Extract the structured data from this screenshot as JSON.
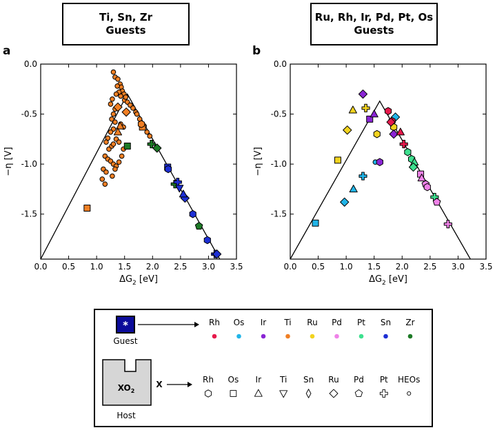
{
  "panels": {
    "a": {
      "letter": "a",
      "title_line1": "Ti, Sn, Zr",
      "title_line2": "Guests"
    },
    "b": {
      "letter": "b",
      "title_line1": "Ru, Rh, Ir, Pd, Pt, Os",
      "title_line2": "Guests"
    }
  },
  "chart_data": [
    {
      "type": "scatter",
      "panel": "a",
      "xlabel_main": "ΔG",
      "xlabel_sub": "2",
      "xlabel_unit": " [eV]",
      "ylabel": "−η [V]",
      "xlim": [
        0.0,
        3.5
      ],
      "ylim": [
        -1.95,
        0.0
      ],
      "xticks": [
        "0.0",
        "0.5",
        "1.0",
        "1.5",
        "2.0",
        "2.5",
        "3.0",
        "3.5"
      ],
      "yticks": [
        "0.0",
        "-0.5",
        "-1.0",
        "-1.5"
      ],
      "volcano_line": [
        [
          0.0,
          -1.95
        ],
        [
          1.55,
          -0.3
        ],
        [
          3.2,
          -1.95
        ]
      ],
      "series": [
        {
          "name": "Ti guests (HEO hosts)",
          "marker": "circle",
          "color": "#f07f24",
          "points": [
            [
              1.3,
              -0.08
            ],
            [
              1.33,
              -0.13
            ],
            [
              1.38,
              -0.15
            ],
            [
              1.42,
              -0.2
            ],
            [
              1.44,
              -0.23
            ],
            [
              1.37,
              -0.22
            ],
            [
              1.46,
              -0.27
            ],
            [
              1.49,
              -0.3
            ],
            [
              1.43,
              -0.32
            ],
            [
              1.5,
              -0.36
            ],
            [
              1.52,
              -0.33
            ],
            [
              1.4,
              -0.28
            ],
            [
              1.35,
              -0.3
            ],
            [
              1.55,
              -0.38
            ],
            [
              1.6,
              -0.41
            ],
            [
              1.28,
              -0.35
            ],
            [
              1.25,
              -0.4
            ],
            [
              1.33,
              -0.45
            ],
            [
              1.65,
              -0.44
            ],
            [
              1.7,
              -0.48
            ],
            [
              1.72,
              -0.5
            ],
            [
              1.77,
              -0.55
            ],
            [
              1.8,
              -0.6
            ],
            [
              1.85,
              -0.62
            ],
            [
              1.9,
              -0.68
            ],
            [
              1.95,
              -0.72
            ],
            [
              1.3,
              -0.5
            ],
            [
              1.27,
              -0.55
            ],
            [
              1.33,
              -0.58
            ],
            [
              1.3,
              -0.65
            ],
            [
              1.25,
              -0.68
            ],
            [
              1.2,
              -0.74
            ],
            [
              1.17,
              -0.78
            ],
            [
              1.22,
              -0.85
            ],
            [
              1.27,
              -0.82
            ],
            [
              1.3,
              -0.8
            ],
            [
              1.35,
              -0.75
            ],
            [
              1.4,
              -0.78
            ],
            [
              1.15,
              -0.92
            ],
            [
              1.2,
              -0.95
            ],
            [
              1.25,
              -0.97
            ],
            [
              1.3,
              -1.0
            ],
            [
              1.35,
              -1.02
            ],
            [
              1.12,
              -1.05
            ],
            [
              1.17,
              -1.08
            ],
            [
              1.1,
              -1.15
            ],
            [
              1.15,
              -1.2
            ],
            [
              1.28,
              -1.12
            ],
            [
              1.33,
              -1.05
            ],
            [
              1.4,
              -0.98
            ],
            [
              1.45,
              -0.92
            ],
            [
              1.48,
              -0.85
            ],
            [
              1.43,
              -0.6
            ],
            [
              1.48,
              -0.63
            ]
          ]
        },
        {
          "name": "Ti/Os host",
          "marker": "square",
          "color": "#f07f24",
          "points": [
            [
              0.83,
              -1.44
            ],
            [
              1.82,
              -0.63
            ]
          ]
        },
        {
          "name": "Ti/Ru host",
          "marker": "diamond",
          "color": "#f07f24",
          "points": [
            [
              1.38,
              -0.43
            ],
            [
              1.53,
              -0.48
            ]
          ]
        },
        {
          "name": "Ti/Ir host",
          "marker": "triangle-up",
          "color": "#f07f24",
          "points": [
            [
              1.42,
              -0.62
            ],
            [
              1.38,
              -0.68
            ]
          ]
        },
        {
          "name": "Ti/Rh host",
          "marker": "hexagon",
          "color": "#f07f24",
          "points": [
            [
              1.8,
              -0.6
            ]
          ]
        },
        {
          "name": "Zr guests",
          "marker": "square",
          "color": "#1d7a26",
          "points": [
            [
              1.55,
              -0.82
            ]
          ]
        },
        {
          "name": "Zr guests",
          "marker": "diamond",
          "color": "#1d7a26",
          "points": [
            [
              2.08,
              -0.84
            ]
          ]
        },
        {
          "name": "Zr guests",
          "marker": "pentagon",
          "color": "#1d7a26",
          "points": [
            [
              2.83,
              -1.62
            ]
          ]
        },
        {
          "name": "Zr guests",
          "marker": "plus",
          "color": "#1d7a26",
          "points": [
            [
              1.98,
              -0.8
            ],
            [
              2.4,
              -1.2
            ]
          ]
        },
        {
          "name": "Sn guests",
          "marker": "square",
          "color": "#1d2fd4",
          "points": [
            [
              2.27,
              -1.03
            ]
          ]
        },
        {
          "name": "Sn guests",
          "marker": "hexagon",
          "color": "#1d2fd4",
          "points": [
            [
              2.28,
              -1.05
            ]
          ]
        },
        {
          "name": "Sn guests",
          "marker": "plus",
          "color": "#1d2fd4",
          "points": [
            [
              2.45,
              -1.18
            ],
            [
              3.12,
              -1.9
            ]
          ]
        },
        {
          "name": "Sn guests",
          "marker": "triangle-down",
          "color": "#1d2fd4",
          "points": [
            [
              2.48,
              -1.24
            ]
          ]
        },
        {
          "name": "Sn guests",
          "marker": "diamond",
          "color": "#1d2fd4",
          "points": [
            [
              2.58,
              -1.34
            ]
          ]
        },
        {
          "name": "Sn guests",
          "marker": "hexagon",
          "color": "#1d2fd4",
          "points": [
            [
              2.72,
              -1.5
            ],
            [
              2.98,
              -1.76
            ]
          ]
        },
        {
          "name": "Sn guests",
          "marker": "triangle-up",
          "color": "#1d2fd4",
          "points": [
            [
              2.55,
              -1.3
            ]
          ]
        },
        {
          "name": "Sn guests",
          "marker": "diamond",
          "color": "#1d2fd4",
          "points": [
            [
              3.15,
              -1.9
            ]
          ]
        }
      ]
    },
    {
      "type": "scatter",
      "panel": "b",
      "xlabel_main": "ΔG",
      "xlabel_sub": "2",
      "xlabel_unit": " [eV]",
      "ylabel": "−η [V]",
      "xlim": [
        0.0,
        3.5
      ],
      "ylim": [
        -1.95,
        0.0
      ],
      "xticks": [
        "0.0",
        "0.5",
        "1.0",
        "1.5",
        "2.0",
        "2.5",
        "3.0",
        "3.5"
      ],
      "yticks": [
        "0.0",
        "-0.5",
        "-1.0",
        "-1.5"
      ],
      "volcano_line": [
        [
          0.0,
          -1.95
        ],
        [
          1.6,
          -0.37
        ],
        [
          3.22,
          -1.95
        ]
      ],
      "series": [
        {
          "name": "Ru guests",
          "marker": "square",
          "color": "#f2d31f",
          "points": [
            [
              0.85,
              -0.96
            ]
          ]
        },
        {
          "name": "Ru guests",
          "marker": "hexagon",
          "color": "#f2d31f",
          "points": [
            [
              1.55,
              -0.7
            ],
            [
              1.85,
              -0.63
            ]
          ]
        },
        {
          "name": "Ru guests",
          "marker": "diamond",
          "color": "#f2d31f",
          "points": [
            [
              1.02,
              -0.66
            ]
          ]
        },
        {
          "name": "Ru guests",
          "marker": "triangle-up",
          "color": "#f2d31f",
          "points": [
            [
              1.12,
              -0.46
            ]
          ]
        },
        {
          "name": "Ru guests",
          "marker": "plus",
          "color": "#f2d31f",
          "points": [
            [
              1.35,
              -0.44
            ]
          ]
        },
        {
          "name": "Os guests",
          "marker": "square",
          "color": "#21b5e8",
          "points": [
            [
              0.45,
              -1.59
            ]
          ]
        },
        {
          "name": "Os guests",
          "marker": "diamond",
          "color": "#21b5e8",
          "points": [
            [
              0.97,
              -1.38
            ],
            [
              1.88,
              -0.53
            ]
          ]
        },
        {
          "name": "Os guests",
          "marker": "triangle-up",
          "color": "#21b5e8",
          "points": [
            [
              1.13,
              -1.25
            ]
          ]
        },
        {
          "name": "Os guests",
          "marker": "plus",
          "color": "#21b5e8",
          "points": [
            [
              1.3,
              -1.12
            ]
          ]
        },
        {
          "name": "Os guests",
          "marker": "circle",
          "color": "#21b5e8",
          "points": [
            [
              1.52,
              -0.98
            ]
          ]
        },
        {
          "name": "Ir guests",
          "marker": "diamond",
          "color": "#8a25d4",
          "points": [
            [
              1.3,
              -0.3
            ],
            [
              1.85,
              -0.7
            ]
          ]
        },
        {
          "name": "Ir guests",
          "marker": "square",
          "color": "#8a25d4",
          "points": [
            [
              1.42,
              -0.55
            ]
          ]
        },
        {
          "name": "Ir guests",
          "marker": "triangle-up",
          "color": "#8a25d4",
          "points": [
            [
              1.5,
              -0.5
            ]
          ]
        },
        {
          "name": "Ir guests",
          "marker": "hexagon",
          "color": "#8a25d4",
          "points": [
            [
              1.6,
              -0.98
            ]
          ]
        },
        {
          "name": "Rh guests",
          "marker": "hexagon",
          "color": "#e6194b",
          "points": [
            [
              1.75,
              -0.47
            ],
            [
              1.82,
              -0.57
            ]
          ]
        },
        {
          "name": "Rh guests",
          "marker": "triangle-up",
          "color": "#e6194b",
          "points": [
            [
              1.97,
              -0.68
            ]
          ]
        },
        {
          "name": "Rh guests",
          "marker": "plus",
          "color": "#e6194b",
          "points": [
            [
              2.03,
              -0.8
            ]
          ]
        },
        {
          "name": "Rh guests",
          "marker": "diamond",
          "color": "#e6194b",
          "points": [
            [
              1.8,
              -0.58
            ]
          ]
        },
        {
          "name": "Pt guests",
          "marker": "hexagon",
          "color": "#3ee08f",
          "points": [
            [
              2.1,
              -0.88
            ],
            [
              2.17,
              -0.95
            ]
          ]
        },
        {
          "name": "Pt guests",
          "marker": "triangle-up",
          "color": "#3ee08f",
          "points": [
            [
              2.22,
              -0.98
            ]
          ]
        },
        {
          "name": "Pt guests",
          "marker": "plus",
          "color": "#3ee08f",
          "points": [
            [
              2.58,
              -1.33
            ]
          ]
        },
        {
          "name": "Pt guests",
          "marker": "diamond",
          "color": "#3ee08f",
          "points": [
            [
              2.2,
              -1.03
            ]
          ]
        },
        {
          "name": "Pd guests",
          "marker": "square",
          "color": "#ef82e8",
          "points": [
            [
              2.33,
              -1.1
            ]
          ]
        },
        {
          "name": "Pd guests",
          "marker": "pentagon",
          "color": "#ef82e8",
          "points": [
            [
              2.42,
              -1.2
            ],
            [
              2.62,
              -1.38
            ]
          ]
        },
        {
          "name": "Pd guests",
          "marker": "plus",
          "color": "#ef82e8",
          "points": [
            [
              2.82,
              -1.6
            ]
          ]
        },
        {
          "name": "Pd guests",
          "marker": "triangle-up",
          "color": "#ef82e8",
          "points": [
            [
              2.35,
              -1.14
            ]
          ]
        },
        {
          "name": "Pd guests",
          "marker": "hexagon",
          "color": "#ef82e8",
          "points": [
            [
              2.45,
              -1.23
            ]
          ]
        }
      ]
    }
  ],
  "legend": {
    "guest_label": "Guest",
    "guest_glyph": "*",
    "host_label": "Host",
    "host_formula": "XO",
    "host_subscript": "2",
    "host_x": "X",
    "guest_elements": [
      {
        "label": "Rh",
        "color": "#e6194b"
      },
      {
        "label": "Os",
        "color": "#21b5e8"
      },
      {
        "label": "Ir",
        "color": "#8a25d4"
      },
      {
        "label": "Ti",
        "color": "#f07f24"
      },
      {
        "label": "Ru",
        "color": "#f2d31f"
      },
      {
        "label": "Pd",
        "color": "#ef82e8"
      },
      {
        "label": "Pt",
        "color": "#3ee08f"
      },
      {
        "label": "Sn",
        "color": "#1d2fd4"
      },
      {
        "label": "Zr",
        "color": "#1d7a26"
      }
    ],
    "host_elements": [
      {
        "label": "Rh",
        "marker": "hexagon"
      },
      {
        "label": "Os",
        "marker": "square"
      },
      {
        "label": "Ir",
        "marker": "triangle-up"
      },
      {
        "label": "Ti",
        "marker": "triangle-down"
      },
      {
        "label": "Sn",
        "marker": "thin-diamond"
      },
      {
        "label": "Ru",
        "marker": "diamond"
      },
      {
        "label": "Pd",
        "marker": "pentagon"
      },
      {
        "label": "Pt",
        "marker": "plus"
      },
      {
        "label": "HEOs",
        "marker": "small-circle"
      }
    ]
  }
}
